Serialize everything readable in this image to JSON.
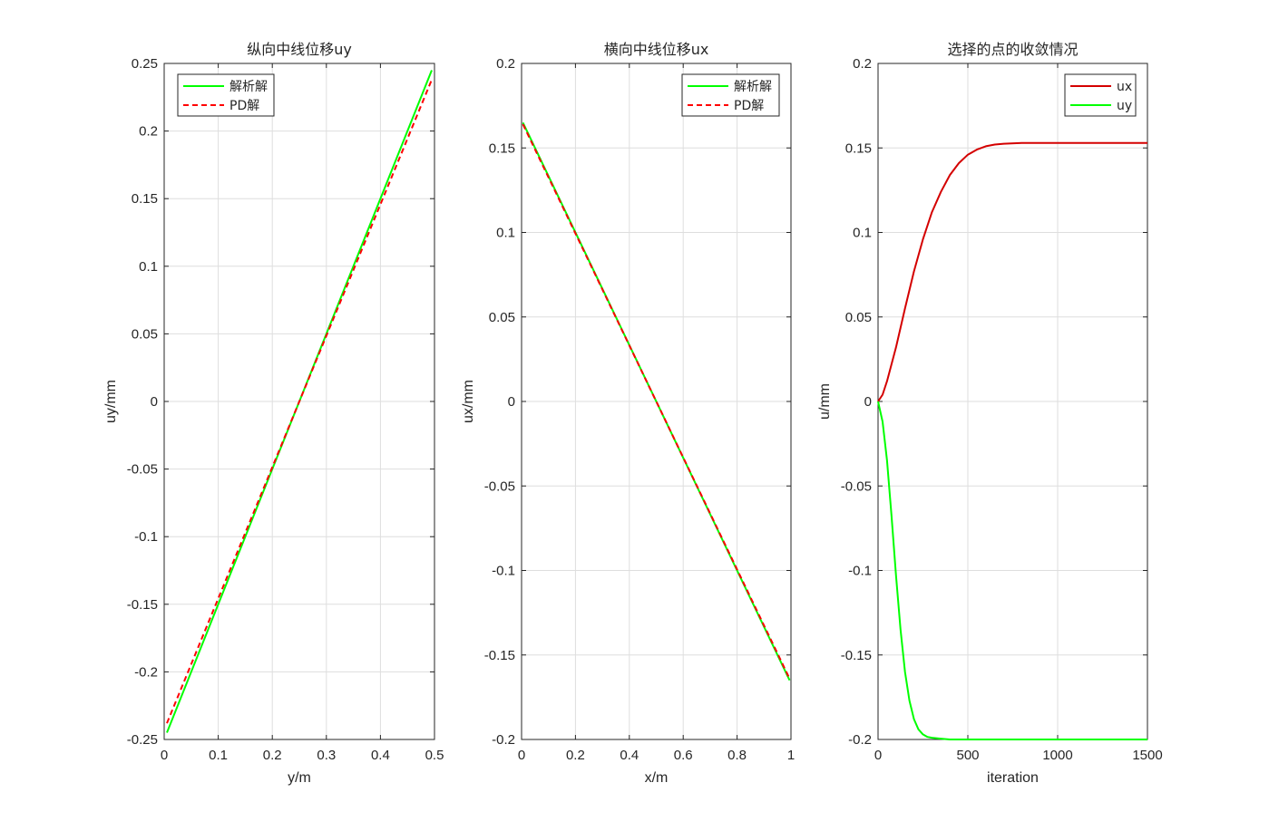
{
  "chart_data": [
    {
      "type": "line",
      "title": "纵向中线位移uy",
      "xlabel": "y/m",
      "ylabel": "uy/mm",
      "xlim": [
        0,
        0.5
      ],
      "ylim": [
        -0.25,
        0.25
      ],
      "xticks": [
        0,
        0.1,
        0.2,
        0.3,
        0.4,
        0.5
      ],
      "xtick_labels": [
        "0",
        "0.1",
        "0.2",
        "0.3",
        "0.4",
        "0.5"
      ],
      "yticks": [
        -0.25,
        -0.2,
        -0.15,
        -0.1,
        -0.05,
        0,
        0.05,
        0.1,
        0.15,
        0.2,
        0.25
      ],
      "ytick_labels": [
        "-0.25",
        "-0.2",
        "-0.15",
        "-0.1",
        "-0.05",
        "0",
        "0.05",
        "0.1",
        "0.15",
        "0.2",
        "0.25"
      ],
      "grid": true,
      "legend_position": "top-left",
      "series": [
        {
          "name": "解析解",
          "color": "#00ff00",
          "style": "solid",
          "x": [
            0.005,
            0.495
          ],
          "values": [
            -0.245,
            0.245
          ]
        },
        {
          "name": "PD解",
          "color": "#ff0000",
          "style": "dashed",
          "x": [
            0.005,
            0.495
          ],
          "values": [
            -0.238,
            0.238
          ]
        }
      ]
    },
    {
      "type": "line",
      "title": "横向中线位移ux",
      "xlabel": "x/m",
      "ylabel": "ux/mm",
      "xlim": [
        0,
        1
      ],
      "ylim": [
        -0.2,
        0.2
      ],
      "xticks": [
        0,
        0.2,
        0.4,
        0.6,
        0.8,
        1
      ],
      "xtick_labels": [
        "0",
        "0.2",
        "0.4",
        "0.6",
        "0.8",
        "1"
      ],
      "yticks": [
        -0.2,
        -0.15,
        -0.1,
        -0.05,
        0,
        0.05,
        0.1,
        0.15,
        0.2
      ],
      "ytick_labels": [
        "-0.2",
        "-0.15",
        "-0.1",
        "-0.05",
        "0",
        "0.05",
        "0.1",
        "0.15",
        "0.2"
      ],
      "grid": true,
      "legend_position": "top-right",
      "series": [
        {
          "name": "解析解",
          "color": "#00ff00",
          "style": "solid",
          "x": [
            0.005,
            0.995
          ],
          "values": [
            0.165,
            -0.165
          ]
        },
        {
          "name": "PD解",
          "color": "#ff0000",
          "style": "dashed",
          "x": [
            0.005,
            0.995
          ],
          "values": [
            0.164,
            -0.164
          ]
        }
      ]
    },
    {
      "type": "line",
      "title": "选择的点的收敛情况",
      "xlabel": "iteration",
      "ylabel": "u/mm",
      "xlim": [
        0,
        1500
      ],
      "ylim": [
        -0.2,
        0.2
      ],
      "xticks": [
        0,
        500,
        1000,
        1500
      ],
      "xtick_labels": [
        "0",
        "500",
        "1000",
        "1500"
      ],
      "yticks": [
        -0.2,
        -0.15,
        -0.1,
        -0.05,
        0,
        0.05,
        0.1,
        0.15,
        0.2
      ],
      "ytick_labels": [
        "-0.2",
        "-0.15",
        "-0.1",
        "-0.05",
        "0",
        "0.05",
        "0.1",
        "0.15",
        "0.2"
      ],
      "grid": true,
      "legend_position": "top-right",
      "series": [
        {
          "name": "ux",
          "color": "#d40000",
          "style": "solid",
          "x": [
            0,
            25,
            50,
            100,
            150,
            200,
            250,
            300,
            350,
            400,
            450,
            500,
            550,
            600,
            650,
            700,
            800,
            900,
            1000,
            1200,
            1500
          ],
          "values": [
            0,
            0.004,
            0.012,
            0.032,
            0.055,
            0.077,
            0.096,
            0.112,
            0.124,
            0.134,
            0.141,
            0.146,
            0.149,
            0.151,
            0.152,
            0.1525,
            0.153,
            0.153,
            0.153,
            0.153,
            0.153
          ]
        },
        {
          "name": "uy",
          "color": "#00ff00",
          "style": "solid",
          "x": [
            0,
            25,
            50,
            75,
            100,
            125,
            150,
            175,
            200,
            225,
            250,
            275,
            300,
            350,
            400,
            500,
            700,
            1000,
            1500
          ],
          "values": [
            0,
            -0.012,
            -0.035,
            -0.068,
            -0.103,
            -0.135,
            -0.16,
            -0.177,
            -0.188,
            -0.194,
            -0.197,
            -0.1985,
            -0.199,
            -0.1995,
            -0.2,
            -0.2,
            -0.2,
            -0.2,
            -0.2
          ]
        }
      ]
    }
  ]
}
